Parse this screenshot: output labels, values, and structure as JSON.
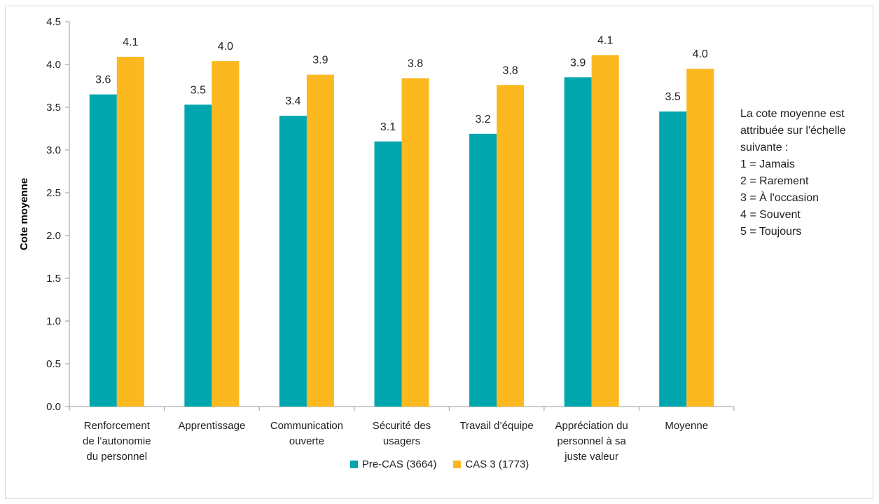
{
  "chart_data": {
    "type": "bar",
    "title": "",
    "xlabel": "",
    "ylabel": "Cote moyenne",
    "ylim": [
      0,
      4.5
    ],
    "yticks": [
      "0.0",
      "0.5",
      "1.0",
      "1.5",
      "2.0",
      "2.5",
      "3.0",
      "3.5",
      "4.0",
      "4.5"
    ],
    "categories": [
      [
        "Renforcement",
        "de l’autonomie",
        "du personnel"
      ],
      [
        "Apprentissage"
      ],
      [
        "Communication",
        "ouverte"
      ],
      [
        "Sécurité des",
        "usagers"
      ],
      [
        "Travail d’équipe"
      ],
      [
        "Appréciation du",
        "personnel à sa",
        "juste valeur"
      ],
      [
        "Moyenne"
      ]
    ],
    "series": [
      {
        "name": "Pre-CAS (3664)",
        "color": "#00a6ad",
        "values": [
          3.65,
          3.53,
          3.4,
          3.1,
          3.19,
          3.85,
          3.45
        ],
        "labels": [
          "3.6",
          "3.5",
          "3.4",
          "3.1",
          "3.2",
          "3.9",
          "3.5"
        ]
      },
      {
        "name": "CAS 3 (1773)",
        "color": "#fbb81f",
        "values": [
          4.09,
          4.04,
          3.88,
          3.84,
          3.76,
          4.11,
          3.95
        ],
        "labels": [
          "4.1",
          "4.0",
          "3.9",
          "3.8",
          "3.8",
          "4.1",
          "4.0"
        ]
      }
    ],
    "grid": false,
    "legend_position": "bottom"
  },
  "note": {
    "lines": [
      "La cote moyenne est",
      "attribuée sur l'échelle",
      "suivante :",
      "1 = Jamais",
      "2 = Rarement",
      "3 = À l'occasion",
      "4 = Souvent",
      "5 = Toujours"
    ]
  }
}
